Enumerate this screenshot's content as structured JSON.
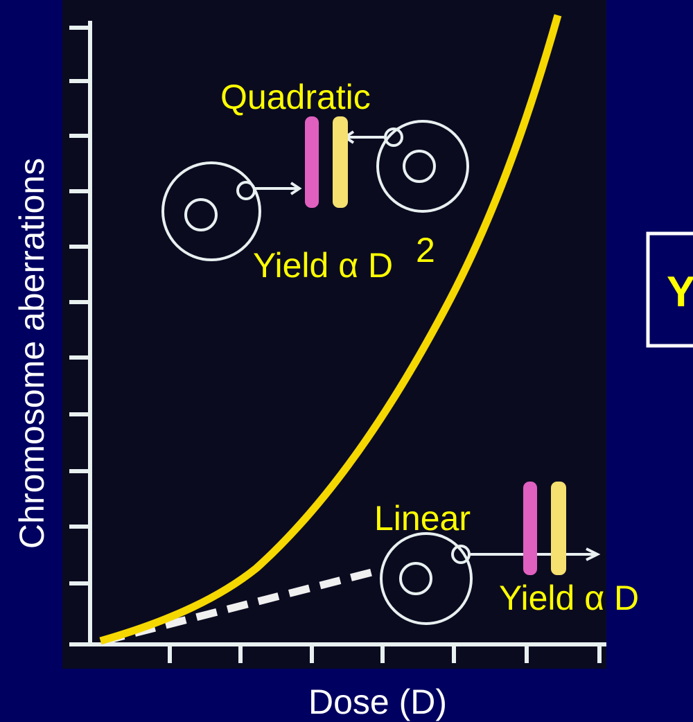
{
  "title_box": "Y",
  "y_axis_label": "Chromosome aberrations",
  "x_axis_label": "Dose (D)",
  "quadratic": {
    "label": "Quadratic",
    "yield": "Yield α D",
    "exponent": "2"
  },
  "linear": {
    "label": "Linear",
    "yield": "Yield α D"
  }
}
